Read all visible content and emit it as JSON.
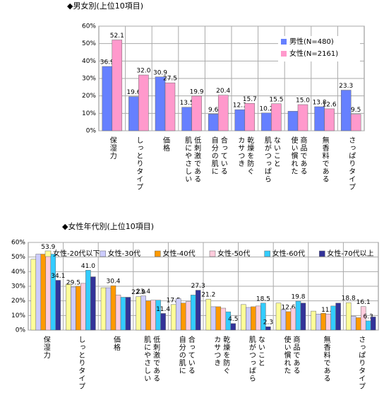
{
  "chart_data": [
    {
      "type": "bar",
      "title": "◆男女別(上位10項目)",
      "categories": [
        "保湿力",
        "しっとりタイプ",
        "価格",
        "低刺激である\n肌にやさしい",
        "合っている\n自分の肌に",
        "乾燥を防ぐ\nカサつき",
        "ないこと\n肌がつっぱら",
        "商品である\n使い慣れた",
        "無香料である",
        "さっぱりタイプ"
      ],
      "series": [
        {
          "name": "男性(N=480)",
          "color": "#6680ff",
          "values": [
            36.9,
            19.6,
            30.9,
            13.5,
            9.6,
            12.1,
            10.2,
            11.2,
            13.8,
            23.3
          ],
          "value_labels": [
            "36.9",
            "19.6",
            "30.9",
            "13.5",
            "9.6",
            "12.1",
            "10.2",
            null,
            "13.8",
            "23.3"
          ]
        },
        {
          "name": "女性(N=2161)",
          "color": "#ff99cc",
          "values": [
            52.1,
            32.0,
            27.5,
            19.9,
            20.4,
            15.7,
            15.5,
            15.0,
            12.6,
            9.5
          ],
          "value_labels": [
            "52.1",
            "32.0",
            "27.5",
            "19.9",
            "20.4",
            "15.7",
            "15.5",
            "15.0",
            "12.6",
            "9.5"
          ]
        }
      ],
      "ylim": [
        0,
        60
      ],
      "yticks": [
        {
          "value": 0,
          "label": "0%"
        },
        {
          "value": 10,
          "label": "10%"
        },
        {
          "value": 20,
          "label": "20%"
        },
        {
          "value": 30,
          "label": "30%"
        },
        {
          "value": 40,
          "label": "40%"
        },
        {
          "value": 50,
          "label": "50%"
        },
        {
          "value": 60,
          "label": "60%"
        }
      ],
      "grid": true,
      "legend": "upper right"
    },
    {
      "type": "bar",
      "title": "◆女性年代別(上位10項目)",
      "categories": [
        "保湿力",
        "しっとりタイプ",
        "価格",
        "低刺激である\n肌にやさしい",
        "合っている\n自分の肌に",
        "乾燥を防ぐ\nカサつき",
        "ないこと\n肌がつっぱら",
        "商品である\n使い慣れた",
        "無香料である",
        "さっぱりタイプ"
      ],
      "series": [
        {
          "name": "女性-20代以下",
          "color": "#ffff99",
          "values": [
            48.5,
            31.5,
            29,
            22.9,
            17.5,
            21.2,
            17.5,
            18.5,
            13,
            18.8
          ],
          "value_labels": [
            null,
            null,
            null,
            "22.9",
            "17.5",
            "21.2",
            null,
            null,
            null,
            "18.8"
          ]
        },
        {
          "name": "女性-30代",
          "color": "#ccccff",
          "values": [
            52,
            29.5,
            29,
            23.4,
            21.5,
            16,
            15.5,
            14,
            11,
            9.5
          ],
          "value_labels": [
            null,
            "29.5",
            null,
            "23.4",
            null,
            null,
            null,
            null,
            null,
            null
          ]
        },
        {
          "name": "女性-40代",
          "color": "#ff9900",
          "values": [
            52,
            30,
            30.4,
            20,
            18.5,
            16,
            16,
            12.6,
            11.5,
            8.5
          ],
          "value_labels": [
            null,
            null,
            "30.4",
            null,
            null,
            null,
            null,
            "12.6",
            null,
            null
          ]
        },
        {
          "name": "女性-50代",
          "color": "#ffccdd",
          "values": [
            53.9,
            32,
            24,
            20.5,
            19.5,
            15,
            16.5,
            15,
            11.0,
            16.1
          ],
          "value_labels": [
            "53.9",
            null,
            null,
            null,
            null,
            null,
            null,
            null,
            "11.0",
            "16.1"
          ]
        },
        {
          "name": "女性-60代",
          "color": "#33ccff",
          "values": [
            52,
            41.0,
            22.5,
            20.5,
            24,
            12.5,
            18.5,
            19.8,
            16.5,
            6.3
          ],
          "value_labels": [
            null,
            "41.0",
            null,
            null,
            null,
            null,
            "18.5",
            "19.8",
            null,
            "6.3"
          ]
        },
        {
          "name": "女性-70代以上",
          "color": "#333399",
          "values": [
            34.1,
            36.5,
            22.5,
            11.4,
            27.3,
            4.5,
            2.3,
            18.5,
            18.5,
            9.0
          ],
          "value_labels": [
            "34.1",
            null,
            null,
            "11.4",
            "27.3",
            "4.5",
            "2.3",
            null,
            null,
            null
          ]
        }
      ],
      "ylim": [
        0,
        60
      ],
      "yticks": [
        {
          "value": 0,
          "label": "0%"
        },
        {
          "value": 10,
          "label": "10%"
        },
        {
          "value": 20,
          "label": "20%"
        },
        {
          "value": 30,
          "label": "30%"
        },
        {
          "value": 40,
          "label": "40%"
        },
        {
          "value": 50,
          "label": "50%"
        },
        {
          "value": 60,
          "label": "60%"
        }
      ],
      "grid": true,
      "legend": "upper center"
    }
  ]
}
